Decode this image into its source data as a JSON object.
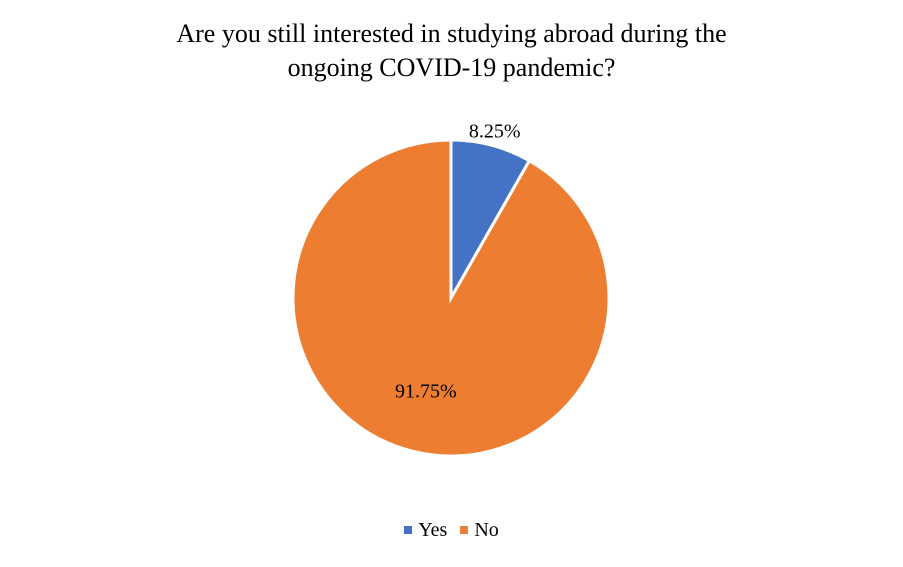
{
  "chart_data": {
    "type": "pie",
    "title": "Are you still interested in studying abroad during the ongoing COVID-19 pandemic?",
    "title_lines": [
      "Are you still interested in studying abroad during the",
      "ongoing COVID-19 pandemic?"
    ],
    "categories": [
      "Yes",
      "No"
    ],
    "values": [
      8.25,
      91.75
    ],
    "data_labels": [
      "8.25%",
      "91.75%"
    ],
    "colors": [
      "#4472C4",
      "#ED7D31"
    ],
    "legend_position": "bottom"
  }
}
